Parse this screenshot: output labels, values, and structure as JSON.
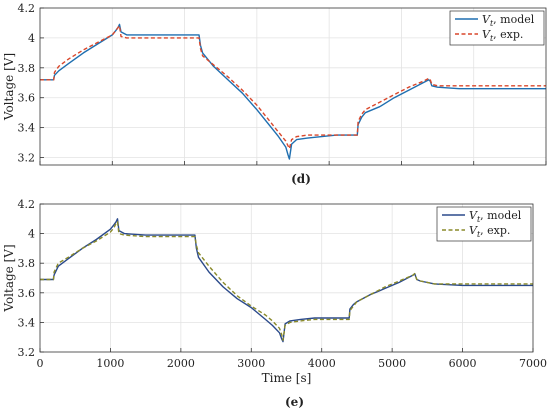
{
  "colors": {
    "model": "#1f6fb0",
    "exp_d": "#d9472b",
    "model_e": "#2b4a8b",
    "exp_e": "#8a8a2a",
    "grid": "#e3e3e3"
  },
  "chart_data": [
    {
      "type": "line",
      "panel_label": "(d)",
      "xlabel": "",
      "ylabel": "Voltage [V]",
      "xlim": [
        0,
        7000
      ],
      "ylim": [
        3.15,
        4.2
      ],
      "yticks": [
        "3.2",
        "3.4",
        "3.6",
        "3.8",
        "4",
        "4.2"
      ],
      "grid": true,
      "legend": "top-right",
      "series": [
        {
          "name": "V_t, model",
          "legend_main": "V",
          "legend_sub": "t",
          "legend_rest": ", model",
          "style": "solid",
          "x": [
            0,
            190,
            200,
            260,
            400,
            600,
            800,
            1000,
            1050,
            1080,
            1100,
            1120,
            1200,
            1500,
            1800,
            2000,
            2200,
            2220,
            2250,
            2400,
            2600,
            2800,
            3000,
            3200,
            3300,
            3400,
            3430,
            3450,
            3480,
            3550,
            3700,
            3900,
            4100,
            4390,
            4400,
            4450,
            4500,
            4700,
            4900,
            5100,
            5300,
            5380,
            5400,
            5420,
            5500,
            5800,
            6200,
            6600,
            7000
          ],
          "y": [
            3.72,
            3.72,
            3.75,
            3.78,
            3.83,
            3.9,
            3.96,
            4.02,
            4.05,
            4.07,
            4.09,
            4.04,
            4.02,
            4.02,
            4.02,
            4.02,
            4.02,
            3.95,
            3.9,
            3.81,
            3.72,
            3.63,
            3.52,
            3.4,
            3.34,
            3.27,
            3.22,
            3.19,
            3.29,
            3.32,
            3.33,
            3.34,
            3.35,
            3.35,
            3.42,
            3.47,
            3.5,
            3.54,
            3.6,
            3.65,
            3.7,
            3.72,
            3.71,
            3.68,
            3.67,
            3.66,
            3.66,
            3.66,
            3.66
          ]
        },
        {
          "name": "V_t, exp.",
          "legend_main": "V",
          "legend_sub": "t",
          "legend_rest": ", exp.",
          "style": "dashed",
          "x": [
            0,
            190,
            200,
            260,
            400,
            600,
            800,
            1000,
            1050,
            1080,
            1100,
            1120,
            1200,
            1500,
            1800,
            2000,
            2200,
            2220,
            2250,
            2400,
            2600,
            2800,
            3000,
            3200,
            3300,
            3400,
            3430,
            3450,
            3480,
            3550,
            3700,
            3900,
            4100,
            4390,
            4400,
            4450,
            4500,
            4700,
            4900,
            5100,
            5300,
            5380,
            5400,
            5420,
            5500,
            5800,
            6200,
            6600,
            7000
          ],
          "y": [
            3.72,
            3.72,
            3.77,
            3.81,
            3.86,
            3.92,
            3.97,
            4.02,
            4.05,
            4.07,
            4.08,
            4.01,
            4.0,
            4.0,
            4.0,
            4.0,
            4.0,
            3.93,
            3.88,
            3.82,
            3.74,
            3.65,
            3.55,
            3.43,
            3.37,
            3.31,
            3.28,
            3.26,
            3.32,
            3.34,
            3.35,
            3.35,
            3.35,
            3.35,
            3.44,
            3.49,
            3.52,
            3.57,
            3.62,
            3.67,
            3.71,
            3.73,
            3.72,
            3.69,
            3.68,
            3.68,
            3.68,
            3.68,
            3.68
          ]
        }
      ]
    },
    {
      "type": "line",
      "panel_label": "(e)",
      "xlabel": "Time [s]",
      "ylabel": "Voltage [V]",
      "xlim": [
        0,
        7000
      ],
      "ylim": [
        3.2,
        4.2
      ],
      "xticks": [
        "0",
        "1000",
        "2000",
        "3000",
        "4000",
        "5000",
        "6000",
        "7000"
      ],
      "yticks": [
        "3.2",
        "3.4",
        "3.6",
        "3.8",
        "4",
        "4.2"
      ],
      "grid": true,
      "legend": "top-right",
      "series": [
        {
          "name": "V_t, model",
          "legend_main": "V",
          "legend_sub": "t",
          "legend_rest": ", model",
          "style": "solid",
          "x": [
            0,
            190,
            200,
            260,
            400,
            600,
            800,
            1000,
            1050,
            1080,
            1100,
            1120,
            1200,
            1500,
            1800,
            2000,
            2200,
            2220,
            2250,
            2400,
            2600,
            2800,
            3000,
            3200,
            3300,
            3400,
            3430,
            3450,
            3480,
            3550,
            3700,
            3900,
            4100,
            4390,
            4400,
            4450,
            4500,
            4700,
            4900,
            5100,
            5300,
            5320,
            5350,
            5400,
            5600,
            6000,
            6500,
            7000
          ],
          "y": [
            3.69,
            3.69,
            3.72,
            3.78,
            3.83,
            3.9,
            3.96,
            4.03,
            4.06,
            4.08,
            4.1,
            4.02,
            4.0,
            3.99,
            3.99,
            3.99,
            3.99,
            3.9,
            3.84,
            3.74,
            3.64,
            3.56,
            3.5,
            3.42,
            3.38,
            3.33,
            3.29,
            3.27,
            3.39,
            3.41,
            3.42,
            3.43,
            3.43,
            3.43,
            3.49,
            3.52,
            3.54,
            3.59,
            3.63,
            3.67,
            3.72,
            3.73,
            3.69,
            3.68,
            3.66,
            3.65,
            3.65,
            3.65
          ]
        },
        {
          "name": "V_t, exp.",
          "legend_main": "V",
          "legend_sub": "t",
          "legend_rest": ", exp.",
          "style": "dashed",
          "x": [
            0,
            190,
            200,
            260,
            400,
            600,
            800,
            1000,
            1050,
            1080,
            1100,
            1120,
            1200,
            1500,
            1800,
            2000,
            2200,
            2220,
            2250,
            2400,
            2600,
            2800,
            3000,
            3200,
            3300,
            3400,
            3430,
            3450,
            3480,
            3550,
            3700,
            3900,
            4100,
            4390,
            4400,
            4450,
            4500,
            4700,
            4900,
            5100,
            5300,
            5320,
            5350,
            5400,
            5600,
            6000,
            6500,
            7000
          ],
          "y": [
            3.69,
            3.69,
            3.74,
            3.8,
            3.84,
            3.9,
            3.95,
            4.01,
            4.04,
            4.07,
            4.08,
            4.0,
            3.99,
            3.98,
            3.98,
            3.98,
            3.98,
            3.92,
            3.87,
            3.78,
            3.67,
            3.58,
            3.51,
            3.45,
            3.41,
            3.36,
            3.32,
            3.28,
            3.38,
            3.4,
            3.41,
            3.42,
            3.42,
            3.42,
            3.48,
            3.51,
            3.54,
            3.59,
            3.64,
            3.68,
            3.72,
            3.73,
            3.69,
            3.68,
            3.66,
            3.66,
            3.66,
            3.66
          ]
        }
      ]
    }
  ]
}
